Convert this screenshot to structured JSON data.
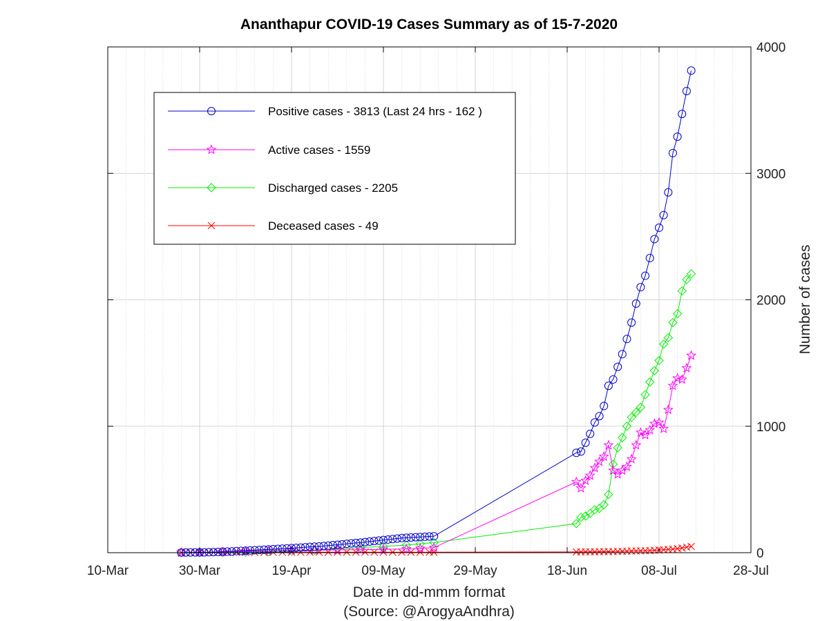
{
  "chart_data": {
    "type": "line",
    "title": "Ananthapur COVID-19 Cases Summary as of 15-7-2020",
    "xlabel": "Date in dd-mmm format",
    "source": "(Source: @ArogyaAndhra)",
    "ylabel": "Number of cases",
    "x_axis": {
      "kind": "date",
      "min": "2020-03-10",
      "max": "2020-07-28",
      "tick_labels": [
        "10-Mar",
        "30-Mar",
        "19-Apr",
        "09-May",
        "29-May",
        "18-Jun",
        "08-Jul",
        "28-Jul"
      ],
      "tick_dates": [
        "2020-03-10",
        "2020-03-30",
        "2020-04-19",
        "2020-05-09",
        "2020-05-29",
        "2020-06-18",
        "2020-07-08",
        "2020-07-28"
      ]
    },
    "y_axis": {
      "min": 0,
      "max": 4000,
      "ticks": [
        0,
        1000,
        2000,
        3000,
        4000
      ],
      "position": "right"
    },
    "grid": true,
    "legend_position": "top-left",
    "series": [
      {
        "name": "Positive cases - 3813 (Last 24 hrs - 162 )",
        "color": "#0000cc",
        "marker": "circle",
        "x": [
          "2020-03-26",
          "2020-03-27",
          "2020-03-28",
          "2020-03-29",
          "2020-03-30",
          "2020-03-31",
          "2020-04-01",
          "2020-04-02",
          "2020-04-03",
          "2020-04-04",
          "2020-04-05",
          "2020-04-06",
          "2020-04-07",
          "2020-04-08",
          "2020-04-09",
          "2020-04-10",
          "2020-04-11",
          "2020-04-12",
          "2020-04-13",
          "2020-04-14",
          "2020-04-15",
          "2020-04-16",
          "2020-04-17",
          "2020-04-18",
          "2020-04-19",
          "2020-04-20",
          "2020-04-21",
          "2020-04-22",
          "2020-04-23",
          "2020-04-24",
          "2020-04-25",
          "2020-04-26",
          "2020-04-27",
          "2020-04-28",
          "2020-04-29",
          "2020-04-30",
          "2020-05-01",
          "2020-05-02",
          "2020-05-03",
          "2020-05-04",
          "2020-05-05",
          "2020-05-06",
          "2020-05-07",
          "2020-05-08",
          "2020-05-09",
          "2020-05-10",
          "2020-05-11",
          "2020-05-12",
          "2020-05-13",
          "2020-05-14",
          "2020-05-15",
          "2020-05-16",
          "2020-05-17",
          "2020-05-18",
          "2020-05-19",
          "2020-05-20",
          "2020-06-20",
          "2020-06-21",
          "2020-06-22",
          "2020-06-23",
          "2020-06-24",
          "2020-06-25",
          "2020-06-26",
          "2020-06-27",
          "2020-06-28",
          "2020-06-29",
          "2020-06-30",
          "2020-07-01",
          "2020-07-02",
          "2020-07-03",
          "2020-07-04",
          "2020-07-05",
          "2020-07-06",
          "2020-07-07",
          "2020-07-08",
          "2020-07-09",
          "2020-07-10",
          "2020-07-11",
          "2020-07-12",
          "2020-07-13",
          "2020-07-14",
          "2020-07-15"
        ],
        "values": [
          1,
          2,
          2,
          3,
          3,
          3,
          4,
          5,
          6,
          8,
          9,
          10,
          12,
          14,
          16,
          18,
          20,
          22,
          24,
          26,
          28,
          30,
          32,
          34,
          36,
          38,
          40,
          43,
          46,
          48,
          50,
          53,
          56,
          60,
          63,
          66,
          70,
          74,
          77,
          80,
          84,
          88,
          92,
          96,
          100,
          104,
          108,
          112,
          116,
          118,
          120,
          122,
          124,
          126,
          128,
          130,
          790,
          800,
          870,
          940,
          1030,
          1080,
          1160,
          1320,
          1370,
          1470,
          1570,
          1690,
          1820,
          1970,
          2100,
          2190,
          2330,
          2480,
          2570,
          2670,
          2850,
          3160,
          3290,
          3470,
          3651,
          3813
        ]
      },
      {
        "name": "Active cases - 1559",
        "color": "#ff00ff",
        "marker": "star",
        "x": [
          "2020-03-26",
          "2020-03-30",
          "2020-04-04",
          "2020-04-09",
          "2020-04-14",
          "2020-04-19",
          "2020-04-24",
          "2020-04-29",
          "2020-05-04",
          "2020-05-09",
          "2020-05-14",
          "2020-05-17",
          "2020-05-20",
          "2020-06-20",
          "2020-06-21",
          "2020-06-22",
          "2020-06-23",
          "2020-06-24",
          "2020-06-25",
          "2020-06-26",
          "2020-06-27",
          "2020-06-28",
          "2020-06-29",
          "2020-06-30",
          "2020-07-01",
          "2020-07-02",
          "2020-07-03",
          "2020-07-04",
          "2020-07-05",
          "2020-07-06",
          "2020-07-07",
          "2020-07-08",
          "2020-07-09",
          "2020-07-10",
          "2020-07-11",
          "2020-07-12",
          "2020-07-13",
          "2020-07-14",
          "2020-07-15"
        ],
        "values": [
          1,
          2,
          6,
          10,
          14,
          18,
          20,
          22,
          24,
          26,
          30,
          35,
          40,
          560,
          510,
          570,
          610,
          670,
          720,
          760,
          850,
          650,
          620,
          650,
          680,
          740,
          850,
          950,
          930,
          970,
          1020,
          1030,
          980,
          1130,
          1320,
          1380,
          1370,
          1460,
          1559
        ]
      },
      {
        "name": "Discharged cases - 2205",
        "color": "#00ee00",
        "marker": "diamond",
        "x": [
          "2020-03-26",
          "2020-03-30",
          "2020-04-04",
          "2020-04-09",
          "2020-04-14",
          "2020-04-19",
          "2020-04-24",
          "2020-04-29",
          "2020-05-04",
          "2020-05-09",
          "2020-05-14",
          "2020-05-17",
          "2020-05-20",
          "2020-06-20",
          "2020-06-21",
          "2020-06-22",
          "2020-06-23",
          "2020-06-24",
          "2020-06-25",
          "2020-06-26",
          "2020-06-27",
          "2020-06-28",
          "2020-06-29",
          "2020-06-30",
          "2020-07-01",
          "2020-07-02",
          "2020-07-03",
          "2020-07-04",
          "2020-07-05",
          "2020-07-06",
          "2020-07-07",
          "2020-07-08",
          "2020-07-09",
          "2020-07-10",
          "2020-07-11",
          "2020-07-12",
          "2020-07-13",
          "2020-07-14",
          "2020-07-15"
        ],
        "values": [
          0,
          0,
          2,
          4,
          8,
          12,
          20,
          30,
          40,
          50,
          60,
          70,
          80,
          230,
          280,
          290,
          310,
          340,
          350,
          380,
          460,
          700,
          830,
          910,
          1000,
          1070,
          1110,
          1150,
          1250,
          1350,
          1440,
          1520,
          1650,
          1700,
          1820,
          1890,
          2070,
          2160,
          2205
        ]
      },
      {
        "name": "Deceased cases - 49",
        "color": "#ff0000",
        "marker": "x",
        "x": [
          "2020-03-26",
          "2020-03-28",
          "2020-03-30",
          "2020-04-01",
          "2020-04-03",
          "2020-04-05",
          "2020-04-07",
          "2020-04-09",
          "2020-04-11",
          "2020-04-13",
          "2020-04-15",
          "2020-04-17",
          "2020-04-19",
          "2020-04-21",
          "2020-04-23",
          "2020-04-25",
          "2020-04-27",
          "2020-04-29",
          "2020-05-01",
          "2020-05-03",
          "2020-05-05",
          "2020-05-07",
          "2020-05-09",
          "2020-05-11",
          "2020-05-13",
          "2020-05-15",
          "2020-05-17",
          "2020-05-19",
          "2020-05-20",
          "2020-06-20",
          "2020-06-21",
          "2020-06-22",
          "2020-06-23",
          "2020-06-24",
          "2020-06-25",
          "2020-06-26",
          "2020-06-27",
          "2020-06-28",
          "2020-06-29",
          "2020-06-30",
          "2020-07-01",
          "2020-07-02",
          "2020-07-03",
          "2020-07-04",
          "2020-07-05",
          "2020-07-06",
          "2020-07-07",
          "2020-07-08",
          "2020-07-09",
          "2020-07-10",
          "2020-07-11",
          "2020-07-12",
          "2020-07-13",
          "2020-07-14",
          "2020-07-15"
        ],
        "values": [
          0,
          0,
          1,
          1,
          1,
          1,
          2,
          2,
          2,
          2,
          3,
          3,
          3,
          3,
          4,
          4,
          4,
          4,
          4,
          4,
          4,
          4,
          4,
          4,
          4,
          4,
          4,
          4,
          4,
          6,
          6,
          7,
          7,
          7,
          8,
          8,
          8,
          9,
          10,
          11,
          12,
          13,
          14,
          15,
          16,
          17,
          19,
          21,
          23,
          26,
          28,
          32,
          37,
          44,
          49
        ]
      }
    ]
  }
}
